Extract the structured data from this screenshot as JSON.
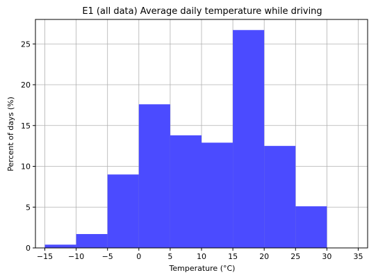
{
  "chart_data": {
    "type": "bar",
    "title": "E1 (all data) Average daily temperature while driving",
    "xlabel": "Temperature (°C)",
    "ylabel": "Percent of days (%)",
    "bin_edges": [
      -15,
      -10,
      -5,
      0,
      5,
      10,
      15,
      20,
      25,
      30
    ],
    "values": [
      0.4,
      1.7,
      9.0,
      17.6,
      13.8,
      12.9,
      26.7,
      12.5,
      5.1
    ],
    "xlim": [
      -16.5,
      36.5
    ],
    "ylim": [
      0,
      28
    ],
    "xticks": [
      -15,
      -10,
      -5,
      0,
      5,
      10,
      15,
      20,
      25,
      30,
      35
    ],
    "xtick_labels": [
      "−15",
      "−10",
      "−5",
      "0",
      "5",
      "10",
      "15",
      "20",
      "25",
      "30",
      "35"
    ],
    "yticks": [
      0,
      5,
      10,
      15,
      20,
      25
    ],
    "ytick_labels": [
      "0",
      "5",
      "10",
      "15",
      "20",
      "25"
    ],
    "bar_color": "#4b4bff",
    "grid": true
  }
}
